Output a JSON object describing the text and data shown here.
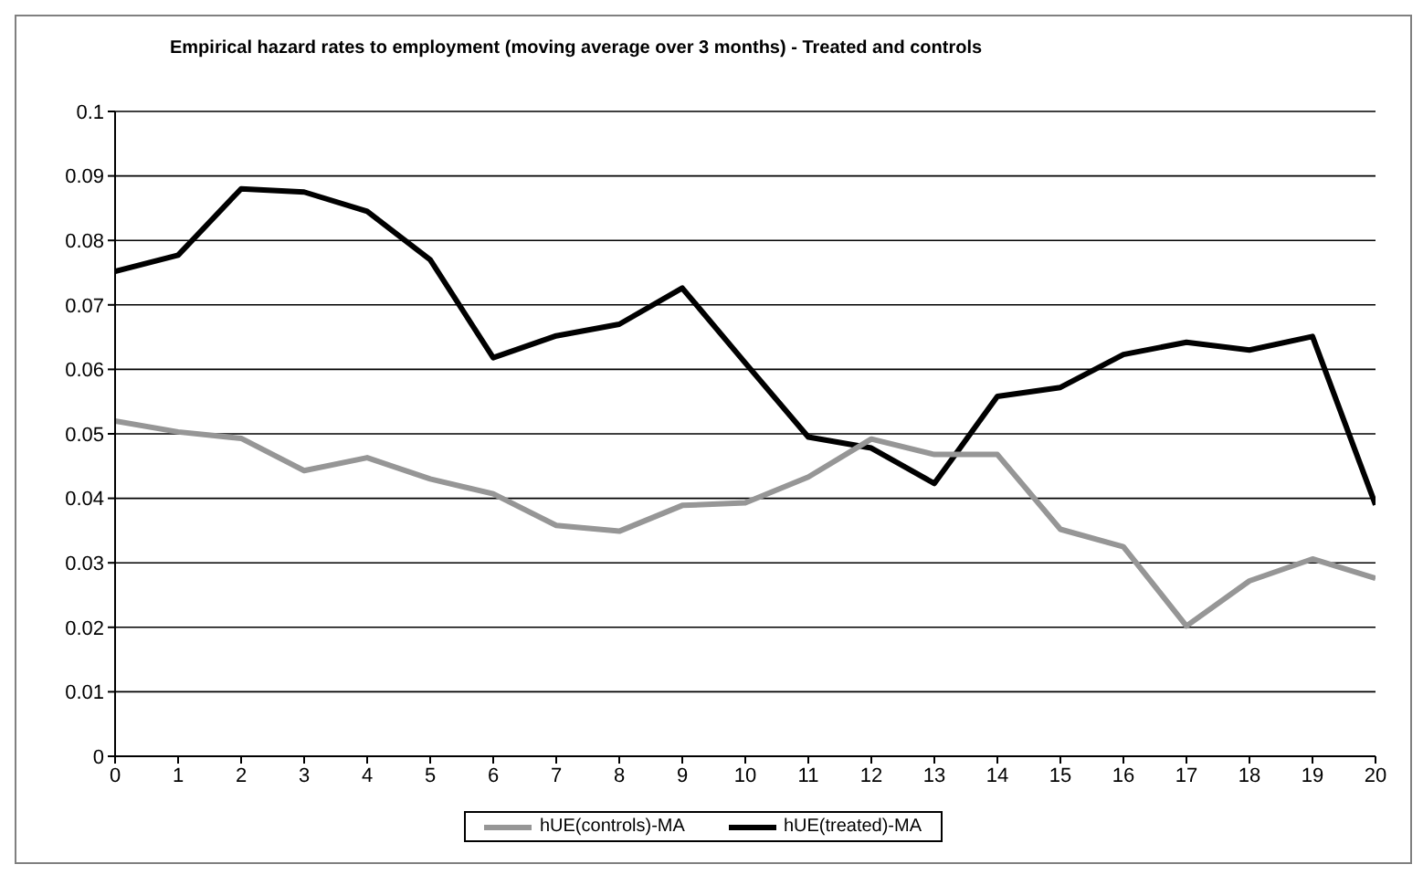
{
  "chart_data": {
    "type": "line",
    "title": "Empirical hazard rates to employment (moving average over 3 months) - Treated and controls",
    "x": [
      0,
      1,
      2,
      3,
      4,
      5,
      6,
      7,
      8,
      9,
      10,
      11,
      12,
      13,
      14,
      15,
      16,
      17,
      18,
      19,
      20
    ],
    "series": [
      {
        "name": "hUE(treated)-MA",
        "color": "#000000",
        "values": [
          0.0752,
          0.0777,
          0.088,
          0.0875,
          0.0845,
          0.077,
          0.0618,
          0.0652,
          0.067,
          0.0726,
          0.061,
          0.0495,
          0.0478,
          0.0423,
          0.0558,
          0.0572,
          0.0623,
          0.0642,
          0.063,
          0.0651,
          0.039
        ]
      },
      {
        "name": "hUE(controls)-MA",
        "color": "#969696",
        "values": [
          0.052,
          0.0503,
          0.0493,
          0.0443,
          0.0463,
          0.043,
          0.0407,
          0.0358,
          0.0349,
          0.0389,
          0.0393,
          0.0433,
          0.0492,
          0.0468,
          0.0468,
          0.0352,
          0.0325,
          0.0202,
          0.0272,
          0.0306,
          0.0276
        ]
      }
    ],
    "xlim": [
      0,
      20
    ],
    "xticks": [
      0,
      1,
      2,
      3,
      4,
      5,
      6,
      7,
      8,
      9,
      10,
      11,
      12,
      13,
      14,
      15,
      16,
      17,
      18,
      19,
      20
    ],
    "ylim": [
      0,
      0.1
    ],
    "yticks": [
      0,
      0.01,
      0.02,
      0.03,
      0.04,
      0.05,
      0.06,
      0.07,
      0.08,
      0.09,
      0.1
    ],
    "grid": "y",
    "legend": "bottom",
    "marker": "none",
    "line_style": "solid"
  }
}
